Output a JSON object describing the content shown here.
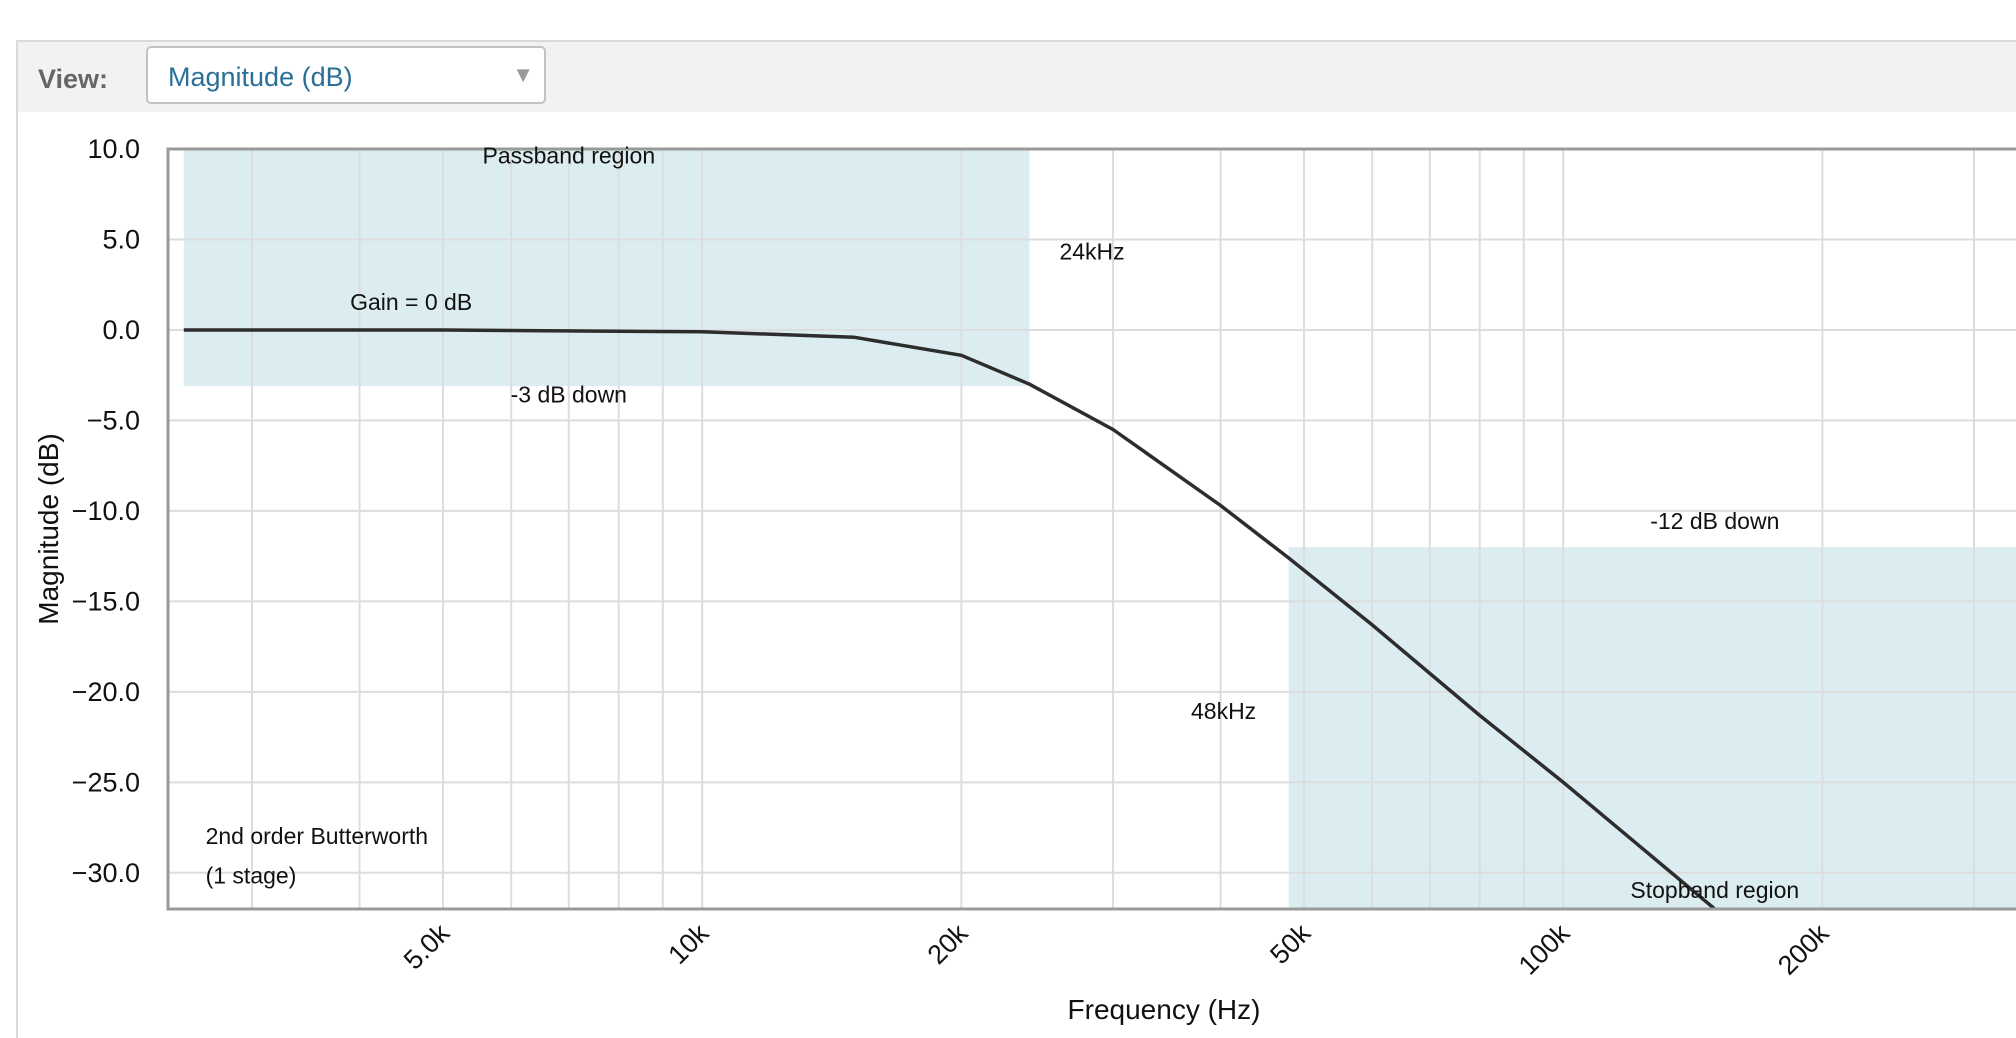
{
  "view": {
    "label": "View:",
    "selected": "Magnitude (dB)"
  },
  "chart_data": {
    "type": "line",
    "xlabel": "Frequency (Hz)",
    "ylabel": "Magnitude (dB)",
    "x_scale": "log",
    "xlim": [
      2500,
      340000
    ],
    "ylim": [
      -32,
      10
    ],
    "grid": true,
    "x_ticks": [
      {
        "value": 5000,
        "label": "5.0k"
      },
      {
        "value": 10000,
        "label": "10k"
      },
      {
        "value": 20000,
        "label": "20k"
      },
      {
        "value": 50000,
        "label": "50k"
      },
      {
        "value": 100000,
        "label": "100k"
      },
      {
        "value": 200000,
        "label": "200k"
      }
    ],
    "y_ticks": [
      {
        "value": 10,
        "label": "10.0"
      },
      {
        "value": 5,
        "label": "5.0"
      },
      {
        "value": 0,
        "label": "0.0"
      },
      {
        "value": -5,
        "label": "−5.0"
      },
      {
        "value": -10,
        "label": "−10.0"
      },
      {
        "value": -15,
        "label": "−15.0"
      },
      {
        "value": -20,
        "label": "−20.0"
      },
      {
        "value": -25,
        "label": "−25.0"
      },
      {
        "value": -30,
        "label": "−30.0"
      }
    ],
    "regions": [
      {
        "x0": 2500,
        "x1": 24000,
        "y0": -3.1,
        "y1": 10
      },
      {
        "x0": 48000,
        "x1": 340000,
        "y0": -32,
        "y1": -12
      }
    ],
    "series": [
      {
        "x": [
          2500,
          5000,
          10000,
          15000,
          20000,
          24000,
          30000,
          40000,
          48000,
          60000,
          80000,
          100000,
          150000
        ],
        "y": [
          0,
          0,
          -0.1,
          -0.4,
          -1.4,
          -3.0,
          -5.5,
          -9.7,
          -12.6,
          -16.3,
          -21.3,
          -25.0,
          -32.0
        ]
      }
    ],
    "annotations": [
      {
        "text": "Passband region",
        "x": 7000,
        "y": 9.2
      },
      {
        "text": "24kHz",
        "x": 26000,
        "y": 3.9
      },
      {
        "text": "Gain = 0 dB",
        "x": 3900,
        "y": 1.1
      },
      {
        "text": "-3 dB down",
        "x": 7000,
        "y": -4.0
      },
      {
        "text": "-12 dB down",
        "x": 150000,
        "y": -11.0
      },
      {
        "text": "48kHz",
        "x": 44000,
        "y": -21.5
      },
      {
        "text": "2nd order Butterworth",
        "x": 2650,
        "y": -28.4
      },
      {
        "text": "(1 stage)",
        "x": 2650,
        "y": -30.6
      },
      {
        "text": "Stopband region",
        "x": 150000,
        "y": -31.4
      }
    ]
  }
}
